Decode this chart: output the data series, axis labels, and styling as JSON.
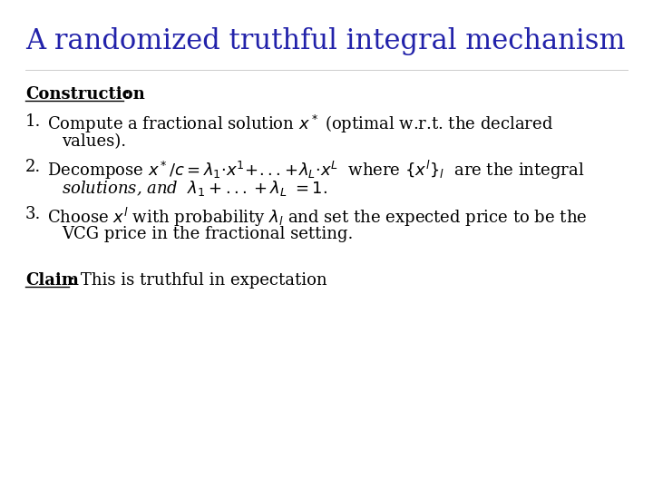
{
  "title": "A randomized truthful integral mechanism",
  "title_color": "#2222AA",
  "title_fontsize": 22,
  "bg_color": "#FFFFFF",
  "text_color": "#000000",
  "body_fontsize": 13,
  "construction_label": "Construction",
  "claim_label": "Claim",
  "claim_rest": ": This is truthful in expectation"
}
